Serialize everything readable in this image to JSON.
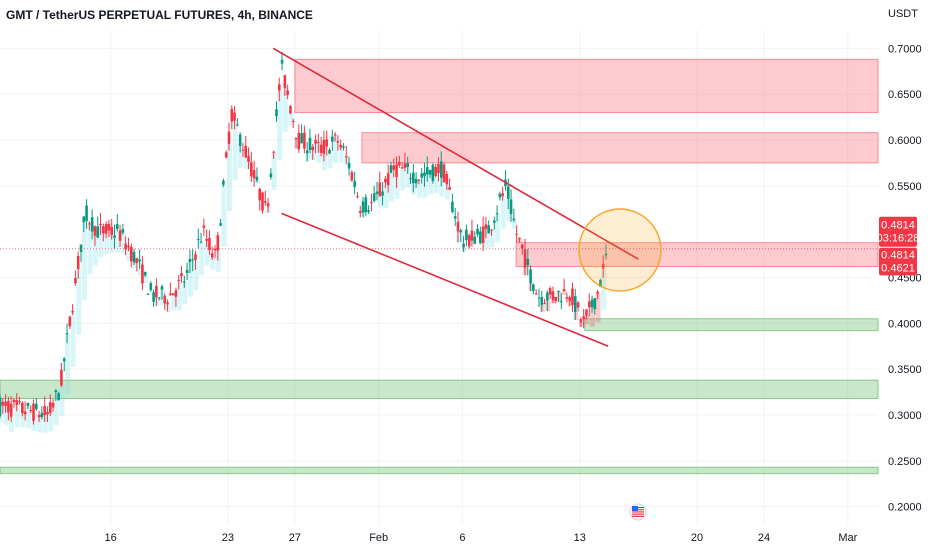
{
  "chart_data": {
    "type": "candlestick",
    "title": "GMT / TetherUS PERPETUAL FUTURES, 4h, BINANCE",
    "unit": "USDT",
    "y_range": [
      0.18,
      0.72
    ],
    "y_ticks": [
      "0.7000",
      "0.6500",
      "0.6000",
      "0.5500",
      "0.4500",
      "0.4000",
      "0.3500",
      "0.3000",
      "0.2500",
      "0.2000"
    ],
    "y_tick_values": [
      0.7,
      0.65,
      0.6,
      0.55,
      0.45,
      0.4,
      0.35,
      0.3,
      0.25,
      0.2
    ],
    "x_ticks": [
      "16",
      "23",
      "27",
      "Feb",
      "6",
      "13",
      "20",
      "24",
      "Mar"
    ],
    "x_tick_days": [
      16,
      23,
      27,
      32,
      37,
      44,
      51,
      55,
      60
    ],
    "x_day_range": [
      9.4,
      61.8
    ],
    "grid": true,
    "last_price": "0.4814",
    "countdown": "03:16:28",
    "badge_prices": [
      "0.4814",
      "0.4621"
    ],
    "badge_values": [
      0.4814,
      0.4621
    ],
    "price_path_day": [
      9.4,
      11,
      12.3,
      13.0,
      14.5,
      15.3,
      16.5,
      17.5,
      18.5,
      19.5,
      20.5,
      21.5,
      22.3,
      23.2,
      24.2,
      25.3,
      26.2,
      27.2,
      28.5,
      29.6,
      30.3,
      30.9,
      31.6,
      33.0,
      34.5,
      35.8,
      37.0,
      38.5,
      39.6,
      40.2,
      41.5,
      42.3,
      43.4,
      44.2,
      45.0,
      45.7
    ],
    "price_path_value": [
      0.31,
      0.305,
      0.3,
      0.33,
      0.52,
      0.5,
      0.5,
      0.47,
      0.43,
      0.43,
      0.45,
      0.5,
      0.47,
      0.63,
      0.58,
      0.52,
      0.68,
      0.6,
      0.59,
      0.6,
      0.57,
      0.53,
      0.53,
      0.57,
      0.56,
      0.57,
      0.49,
      0.5,
      0.55,
      0.5,
      0.43,
      0.43,
      0.435,
      0.4,
      0.43,
      0.48
    ],
    "demand_zones": [
      {
        "low": 0.392,
        "high": 0.405,
        "from_day": 44.3,
        "to_day": 61.8
      },
      {
        "low": 0.318,
        "high": 0.338,
        "from_day": 9.4,
        "to_day": 61.8
      },
      {
        "low": 0.236,
        "high": 0.243,
        "from_day": 9.4,
        "to_day": 61.8
      }
    ],
    "supply_zones": [
      {
        "low": 0.63,
        "high": 0.688,
        "from_day": 27.0,
        "to_day": 61.8
      },
      {
        "low": 0.575,
        "high": 0.608,
        "from_day": 31.0,
        "to_day": 61.8
      },
      {
        "low": 0.462,
        "high": 0.488,
        "from_day": 40.2,
        "to_day": 61.8
      }
    ],
    "trendlines": [
      {
        "from_day": 25.7,
        "from_value": 0.7,
        "to_day": 47.5,
        "to_value": 0.47
      },
      {
        "from_day": 26.2,
        "from_value": 0.52,
        "to_day": 45.7,
        "to_value": 0.375
      }
    ],
    "highlight_circle": {
      "day": 46.4,
      "value": 0.48,
      "radius": 41
    },
    "colors": {
      "up": "#089981",
      "down": "#f23645",
      "supply": "#f7525f",
      "demand": "#4caf50",
      "trendline": "#e0283b",
      "highlight": "#f5a623",
      "trail": "#7fe0e8"
    },
    "icon": "us-flag-icon"
  }
}
